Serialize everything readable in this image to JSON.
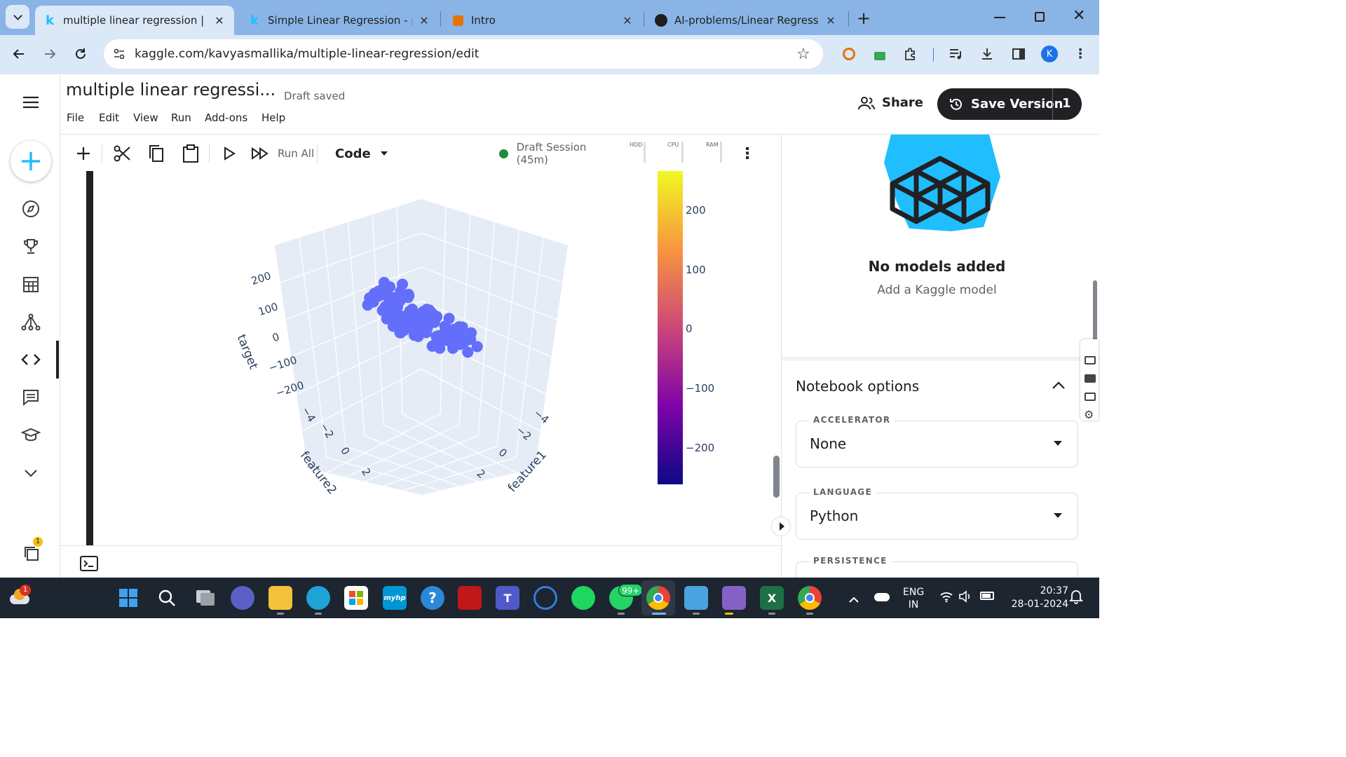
{
  "browser": {
    "tabs": [
      {
        "icon": "k",
        "title": "multiple linear regression | Kag",
        "active": true
      },
      {
        "icon": "k",
        "title": "Simple Linear Regression - plac",
        "active": false
      },
      {
        "icon": "intro-icon",
        "title": "Intro",
        "active": false
      },
      {
        "icon": "github-icon",
        "title": "AI-problems/Linear Regression/",
        "active": false
      }
    ],
    "url": "kaggle.com/kavyasmallika/multiple-linear-regression/edit",
    "profile_initial": "K"
  },
  "notebook": {
    "title": "multiple linear regressi...",
    "status": "Draft saved",
    "menu": [
      "File",
      "Edit",
      "View",
      "Run",
      "Add-ons",
      "Help"
    ],
    "share_label": "Share",
    "save_version_label": "Save Version",
    "save_version_count": "1",
    "toolbar": {
      "run_all": "Run All",
      "cell_type": "Code",
      "session": "Draft Session (45m)",
      "meters": [
        "HDD",
        "CPU",
        "RAM"
      ]
    }
  },
  "chart_data": {
    "type": "scatter",
    "subtype": "3d-scatter",
    "xlabel": "feature1",
    "ylabel": "feature2",
    "zlabel": "target",
    "z_ticks": [
      "200",
      "100",
      "0",
      "−100",
      "−200"
    ],
    "feature2_ticks": [
      "−4",
      "−2",
      "0",
      "2"
    ],
    "feature1_ticks": [
      "−4",
      "−2",
      "0",
      "2"
    ],
    "colorbar_ticks": [
      "200",
      "100",
      "0",
      "−100",
      "−200"
    ],
    "marker_color": "#636efa",
    "colorscale": [
      "#0d0887",
      "#7e03a8",
      "#cc4778",
      "#f89540",
      "#f0f921"
    ]
  },
  "right_panel": {
    "models_title": "No models added",
    "models_subtitle": "Add a Kaggle model",
    "options_title": "Notebook options",
    "accelerator_label": "ACCELERATOR",
    "accelerator_value": "None",
    "language_label": "LANGUAGE",
    "language_value": "Python",
    "persistence_label": "PERSISTENCE"
  },
  "sidebar_badge": "1",
  "taskbar": {
    "weather_badge": "1",
    "whatsapp_badge": "99+",
    "lang_line1": "ENG",
    "lang_line2": "IN",
    "time": "20:37",
    "date": "28-01-2024"
  }
}
